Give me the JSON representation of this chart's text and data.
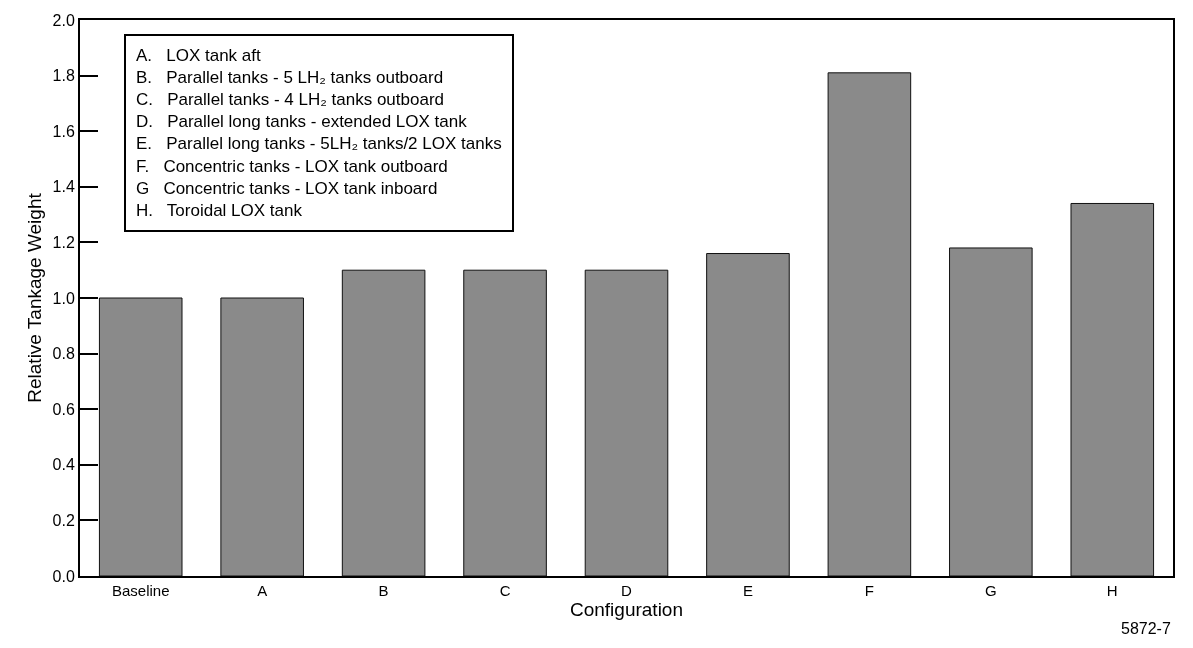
{
  "chart_data": {
    "type": "bar",
    "xlabel": "Configuration",
    "ylabel": "Relative Tankage Weight",
    "categories": [
      "Baseline",
      "A",
      "B",
      "C",
      "D",
      "E",
      "F",
      "G",
      "H"
    ],
    "values": [
      1.0,
      1.0,
      1.1,
      1.1,
      1.1,
      1.16,
      1.81,
      1.18,
      1.34
    ],
    "color": "#8a8a8a",
    "ylim": [
      0,
      2.0
    ],
    "yticks": [
      {
        "value": 0,
        "label": "0.0"
      },
      0.2,
      0.4,
      0.6,
      0.8,
      {
        "value": 1,
        "label": "1.0"
      },
      1.2,
      1.4,
      1.6,
      1.8,
      {
        "value": 2,
        "label": "2.0"
      }
    ],
    "annotations": [
      "A.   LOX tank aft",
      "B.   Parallel tanks - 5 LH₂ tanks outboard",
      "C.   Parallel tanks - 4 LH₂ tanks outboard",
      "D.   Parallel long tanks - extended LOX tank",
      "E.   Parallel long tanks - 5LH₂ tanks/2 LOX tanks",
      "F.   Concentric tanks - LOX tank outboard",
      "G   Concentric tanks - LOX tank inboard",
      "H.   Toroidal LOX tank",
      "5872-7"
    ]
  }
}
